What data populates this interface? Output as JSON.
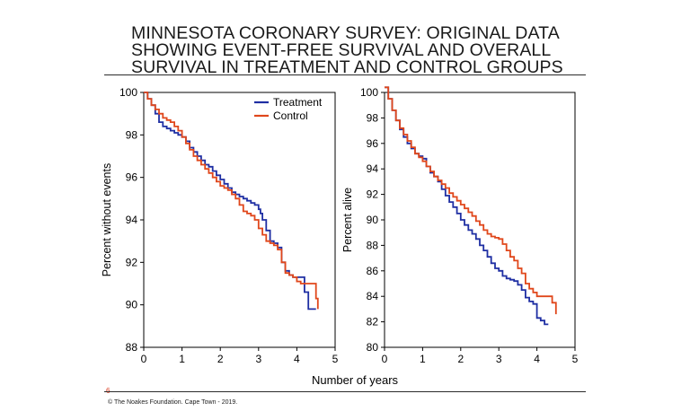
{
  "slide": {
    "title_lines": [
      "MINNESOTA CORONARY SURVEY: ORIGINAL DATA",
      "SHOWING EVENT-FREE SURVIVAL AND OVERALL",
      "SURVIVAL IN TREATMENT AND CONTROL GROUPS"
    ],
    "page_number": "6",
    "copyright": "© The Noakes Foundation. Cape Town - 2019.",
    "shared_xlabel": "Number of years"
  },
  "colors": {
    "treatment": "#1f2fa3",
    "control": "#e0471b",
    "axis": "#000000"
  },
  "chart_data": [
    {
      "type": "line",
      "ylabel": "Percent without events",
      "xlim": [
        0,
        5
      ],
      "ylim": [
        88,
        100
      ],
      "xticks": [
        0,
        1,
        2,
        3,
        4,
        5
      ],
      "yticks": [
        88,
        90,
        92,
        94,
        96,
        98,
        100
      ],
      "grid": false,
      "legend": "top-right",
      "series": [
        {
          "name": "Treatment",
          "color": "#1f2fa3",
          "x": [
            0,
            0.1,
            0.2,
            0.3,
            0.4,
            0.5,
            0.6,
            0.7,
            0.8,
            0.9,
            1.0,
            1.1,
            1.2,
            1.3,
            1.4,
            1.5,
            1.6,
            1.7,
            1.8,
            1.9,
            2.0,
            2.1,
            2.2,
            2.3,
            2.4,
            2.5,
            2.6,
            2.7,
            2.8,
            2.9,
            3.0,
            3.05,
            3.1,
            3.2,
            3.3,
            3.4,
            3.45,
            3.5,
            3.6,
            3.7,
            3.8,
            3.9,
            4.0,
            4.1,
            4.2,
            4.3,
            4.4,
            4.5
          ],
          "y": [
            100,
            99.7,
            99.4,
            99.0,
            98.6,
            98.4,
            98.3,
            98.2,
            98.1,
            98.0,
            97.9,
            97.7,
            97.4,
            97.2,
            97.0,
            96.8,
            96.6,
            96.5,
            96.3,
            96.1,
            95.9,
            95.7,
            95.5,
            95.3,
            95.2,
            95.1,
            95.0,
            94.9,
            94.8,
            94.7,
            94.5,
            94.3,
            94.0,
            93.5,
            93.0,
            92.9,
            92.9,
            92.7,
            92.0,
            91.6,
            91.4,
            91.3,
            91.3,
            91.3,
            90.6,
            89.8,
            89.8,
            89.8
          ]
        },
        {
          "name": "Control",
          "color": "#e0471b",
          "x": [
            0,
            0.1,
            0.2,
            0.3,
            0.4,
            0.5,
            0.6,
            0.7,
            0.8,
            0.9,
            1.0,
            1.1,
            1.2,
            1.3,
            1.4,
            1.5,
            1.6,
            1.7,
            1.8,
            1.9,
            2.0,
            2.1,
            2.2,
            2.3,
            2.4,
            2.5,
            2.6,
            2.7,
            2.8,
            2.9,
            3.0,
            3.1,
            3.2,
            3.3,
            3.4,
            3.5,
            3.6,
            3.7,
            3.8,
            3.9,
            4.0,
            4.1,
            4.2,
            4.3,
            4.4,
            4.5,
            4.55
          ],
          "y": [
            100,
            99.7,
            99.4,
            99.2,
            99.0,
            98.8,
            98.7,
            98.6,
            98.4,
            98.2,
            97.9,
            97.6,
            97.3,
            97.0,
            96.8,
            96.6,
            96.4,
            96.2,
            96.0,
            95.8,
            95.6,
            95.5,
            95.4,
            95.2,
            95.0,
            94.7,
            94.4,
            94.3,
            94.2,
            94.0,
            93.6,
            93.3,
            93.0,
            92.9,
            92.8,
            92.6,
            92.0,
            91.5,
            91.4,
            91.3,
            91.1,
            91.0,
            91.0,
            91.0,
            91.0,
            90.3,
            89.8
          ]
        }
      ]
    },
    {
      "type": "line",
      "ylabel": "Percent alive",
      "xlim": [
        0,
        5
      ],
      "ylim": [
        80,
        100
      ],
      "xticks": [
        0,
        1,
        2,
        3,
        4,
        5
      ],
      "yticks": [
        80,
        82,
        84,
        86,
        88,
        90,
        92,
        94,
        96,
        98,
        100
      ],
      "grid": false,
      "series": [
        {
          "name": "Treatment",
          "color": "#1f2fa3",
          "x": [
            0,
            0.1,
            0.2,
            0.3,
            0.4,
            0.5,
            0.6,
            0.7,
            0.8,
            0.9,
            1.0,
            1.1,
            1.2,
            1.3,
            1.4,
            1.5,
            1.6,
            1.7,
            1.8,
            1.9,
            2.0,
            2.1,
            2.2,
            2.3,
            2.4,
            2.5,
            2.6,
            2.7,
            2.8,
            2.9,
            3.0,
            3.1,
            3.2,
            3.3,
            3.4,
            3.5,
            3.6,
            3.7,
            3.8,
            3.9,
            4.0,
            4.1,
            4.2,
            4.3
          ],
          "y": [
            100.4,
            99.5,
            98.6,
            97.8,
            97.1,
            96.5,
            96.0,
            95.6,
            95.2,
            95.0,
            94.8,
            94.2,
            93.7,
            93.4,
            93.0,
            92.4,
            91.9,
            91.4,
            91.0,
            90.5,
            90.0,
            89.6,
            89.2,
            88.9,
            88.5,
            88.0,
            87.6,
            87.1,
            86.6,
            86.2,
            86.0,
            85.6,
            85.4,
            85.3,
            85.2,
            84.9,
            84.5,
            83.9,
            83.6,
            83.4,
            82.3,
            82.1,
            81.8,
            81.8
          ]
        },
        {
          "name": "Control",
          "color": "#e0471b",
          "x": [
            0,
            0.1,
            0.2,
            0.3,
            0.4,
            0.5,
            0.6,
            0.7,
            0.8,
            0.9,
            1.0,
            1.1,
            1.2,
            1.3,
            1.4,
            1.5,
            1.6,
            1.7,
            1.8,
            1.9,
            2.0,
            2.1,
            2.2,
            2.3,
            2.4,
            2.5,
            2.6,
            2.7,
            2.8,
            2.9,
            3.0,
            3.1,
            3.2,
            3.3,
            3.4,
            3.5,
            3.6,
            3.7,
            3.8,
            3.9,
            4.0,
            4.1,
            4.2,
            4.3,
            4.4,
            4.5
          ],
          "y": [
            100.4,
            99.5,
            98.6,
            97.8,
            97.2,
            96.7,
            96.2,
            95.7,
            95.2,
            94.9,
            94.6,
            94.2,
            93.8,
            93.4,
            93.1,
            92.8,
            92.5,
            92.1,
            91.8,
            91.5,
            91.2,
            90.9,
            90.6,
            90.3,
            89.9,
            89.6,
            89.2,
            88.9,
            88.7,
            88.6,
            88.5,
            88.1,
            87.6,
            87.1,
            86.8,
            86.2,
            85.8,
            85.0,
            84.6,
            84.3,
            84.0,
            84.0,
            84.0,
            84.0,
            83.5,
            82.6
          ]
        }
      ]
    }
  ]
}
